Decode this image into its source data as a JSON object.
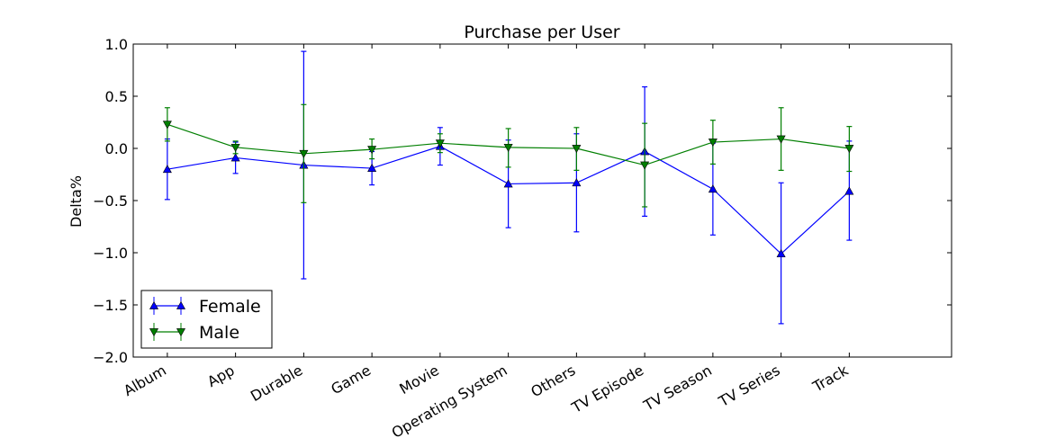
{
  "chart_data": {
    "type": "line",
    "title": "Purchase per User",
    "xlabel": "",
    "ylabel": "Delta%",
    "ylim": [
      -2.0,
      1.0
    ],
    "yticks": [
      "1.0",
      "0.5",
      "0.0",
      "−0.5",
      "−1.0",
      "−1.5",
      "−2.0"
    ],
    "ytick_values": [
      1.0,
      0.5,
      0.0,
      -0.5,
      -1.0,
      -1.5,
      -2.0
    ],
    "categories": [
      "Album",
      "App",
      "Durable",
      "Game",
      "Movie",
      "Operating System",
      "Others",
      "TV Episode",
      "TV Season",
      "TV Series",
      "Track"
    ],
    "legend_position": "lower-left",
    "grid": false,
    "series": [
      {
        "name": "Female",
        "color": "#0000ff",
        "marker": "triangle-up",
        "values": [
          -0.2,
          -0.09,
          -0.16,
          -0.19,
          0.02,
          -0.34,
          -0.33,
          -0.03,
          -0.39,
          -1.01,
          -0.41
        ],
        "err_low": [
          -0.49,
          -0.24,
          -1.25,
          -0.35,
          -0.16,
          -0.76,
          -0.8,
          -0.65,
          -0.83,
          -1.68,
          -0.88
        ],
        "err_high": [
          0.09,
          0.06,
          0.93,
          -0.03,
          0.2,
          0.08,
          0.14,
          0.59,
          0.05,
          -0.33,
          0.07
        ]
      },
      {
        "name": "Male",
        "color": "#007f00",
        "marker": "triangle-down",
        "values": [
          0.23,
          0.01,
          -0.05,
          -0.01,
          0.05,
          0.01,
          0.0,
          -0.16,
          0.06,
          0.09,
          0.0
        ],
        "err_low": [
          0.07,
          -0.05,
          -0.52,
          -0.1,
          -0.04,
          -0.18,
          -0.21,
          -0.56,
          -0.15,
          -0.21,
          -0.22
        ],
        "err_high": [
          0.39,
          0.07,
          0.42,
          0.09,
          0.14,
          0.19,
          0.2,
          0.24,
          0.27,
          0.39,
          0.21
        ]
      }
    ]
  }
}
